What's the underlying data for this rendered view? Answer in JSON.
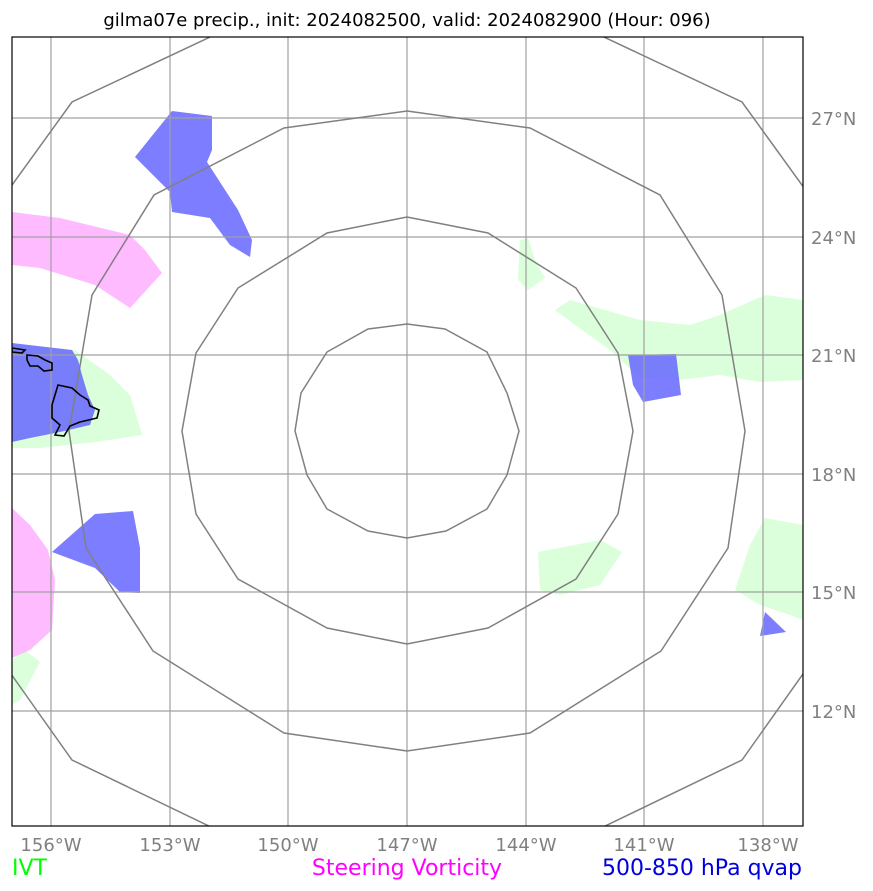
{
  "title": "gilma07e precip., init: 2024082500, valid: 2024082900 (Hour: 096)",
  "lat_labels": [
    "27°N",
    "24°N",
    "21°N",
    "18°N",
    "15°N",
    "12°N"
  ],
  "lon_labels": [
    "156°W",
    "153°W",
    "150°W",
    "147°W",
    "144°W",
    "141°W",
    "138°W"
  ],
  "legend": [
    {
      "label": "IVT",
      "color": "#00ff00"
    },
    {
      "label": "Steering Vorticity",
      "color": "#ff00ff"
    },
    {
      "label": "500-850 hPa qvap",
      "color": "#0000dd"
    }
  ],
  "colors": {
    "ivt_fill": "#ccffcc",
    "vorticity_fill": "#ffaaff",
    "qvap_fill": "#6666ff",
    "coastline": "#000000",
    "rings": "#808080",
    "grid": "#a0a0a0"
  }
}
